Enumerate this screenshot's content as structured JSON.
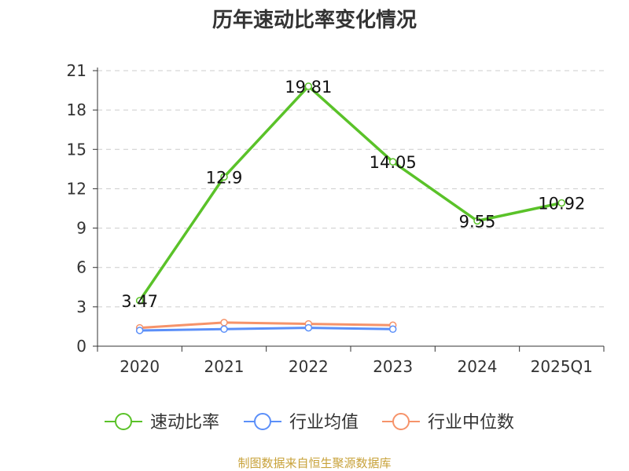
{
  "source_text": "制图数据来自恒生聚源数据库",
  "colors": {
    "source": "#c8a23a",
    "grid": "#cccccc",
    "axis": "#333333"
  },
  "chart_data": {
    "type": "line",
    "title": "历年速动比率变化情况",
    "categories": [
      "2020",
      "2021",
      "2022",
      "2023",
      "2024",
      "2025Q1"
    ],
    "ylim": [
      0,
      21
    ],
    "yticks": [
      0,
      3,
      6,
      9,
      12,
      15,
      18,
      21
    ],
    "grid": true,
    "legend_position": "bottom",
    "series": [
      {
        "name": "速动比率",
        "color": "#5ac229",
        "values": [
          3.47,
          12.9,
          19.81,
          14.05,
          9.55,
          10.92
        ],
        "labels": [
          "3.47",
          "12.9",
          "19.81",
          "14.05",
          "9.55",
          "10.92"
        ]
      },
      {
        "name": "行业均值",
        "color": "#5b8ff9",
        "values": [
          1.2,
          1.3,
          1.4,
          1.3,
          null,
          null
        ]
      },
      {
        "name": "行业中位数",
        "color": "#f6936a",
        "values": [
          1.4,
          1.8,
          1.7,
          1.6,
          null,
          null
        ]
      }
    ]
  }
}
